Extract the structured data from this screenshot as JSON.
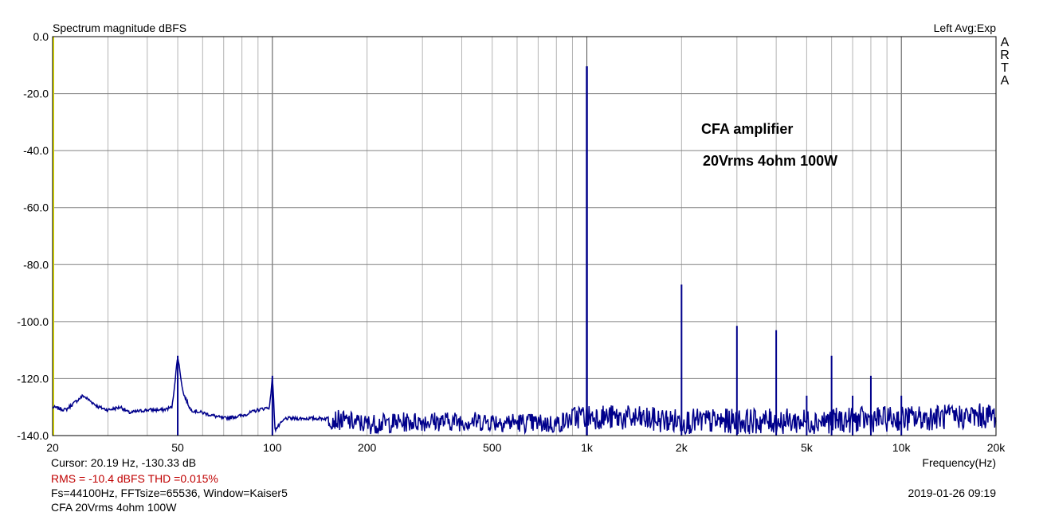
{
  "header": {
    "title": "Spectrum magnitude dBFS",
    "channel_info": "Left  Avg:Exp"
  },
  "brand": "ARTA",
  "chart_data": {
    "type": "line",
    "title": "Spectrum magnitude dBFS",
    "xlabel": "Frequency(Hz)",
    "ylabel": "",
    "xscale": "log",
    "xlim": [
      20,
      20000
    ],
    "ylim": [
      -140,
      0
    ],
    "x_ticks": [
      20,
      50,
      100,
      200,
      500,
      1000,
      2000,
      5000,
      10000,
      20000
    ],
    "x_tick_labels": [
      "20",
      "50",
      "100",
      "200",
      "500",
      "1k",
      "2k",
      "5k",
      "10k",
      "20k"
    ],
    "y_ticks": [
      0,
      -20,
      -40,
      -60,
      -80,
      -100,
      -120,
      -140
    ],
    "y_tick_labels": [
      "0.0",
      "-20.0",
      "-40.0",
      "-60.0",
      "-80.0",
      "-100.0",
      "-120.0",
      "-140.0"
    ],
    "grid": true,
    "line_color": "#00008b",
    "annotations": [
      "CFA amplifier",
      "20Vrms 4ohm 100W"
    ],
    "noise_floor": [
      [
        20,
        -130
      ],
      [
        22,
        -131
      ],
      [
        25,
        -126
      ],
      [
        28,
        -130
      ],
      [
        30,
        -131
      ],
      [
        33,
        -130
      ],
      [
        35,
        -132
      ],
      [
        40,
        -131
      ],
      [
        45,
        -131
      ],
      [
        48,
        -130
      ],
      [
        50,
        -112
      ],
      [
        52,
        -125
      ],
      [
        55,
        -131
      ],
      [
        60,
        -132
      ],
      [
        70,
        -134
      ],
      [
        80,
        -133
      ],
      [
        90,
        -131
      ],
      [
        98,
        -130
      ],
      [
        100,
        -119
      ],
      [
        102,
        -138
      ],
      [
        110,
        -134
      ],
      [
        150,
        -134
      ],
      [
        200,
        -136
      ],
      [
        300,
        -135
      ],
      [
        500,
        -135
      ],
      [
        800,
        -136
      ],
      [
        950,
        -133
      ],
      [
        2000,
        -135
      ],
      [
        5000,
        -135
      ],
      [
        10000,
        -134
      ],
      [
        20000,
        -133
      ]
    ],
    "peaks": [
      {
        "f": 50,
        "db": -112
      },
      {
        "f": 100,
        "db": -119
      },
      {
        "f": 1000,
        "db": -10.4
      },
      {
        "f": 2000,
        "db": -87
      },
      {
        "f": 3000,
        "db": -101.5
      },
      {
        "f": 4000,
        "db": -103
      },
      {
        "f": 5000,
        "db": -126
      },
      {
        "f": 6000,
        "db": -112
      },
      {
        "f": 7000,
        "db": -126
      },
      {
        "f": 8000,
        "db": -119
      },
      {
        "f": 10000,
        "db": -126
      }
    ]
  },
  "footer": {
    "cursor": "Cursor: 20.19 Hz, -130.33 dB",
    "rms": "RMS =  -10.4 dBFS   THD =0.015%",
    "settings": "Fs=44100Hz, FFTsize=65536, Window=Kaiser5",
    "description": "CFA 20Vrms 4ohm 100W",
    "datetime": "2019-01-26  09:19"
  }
}
